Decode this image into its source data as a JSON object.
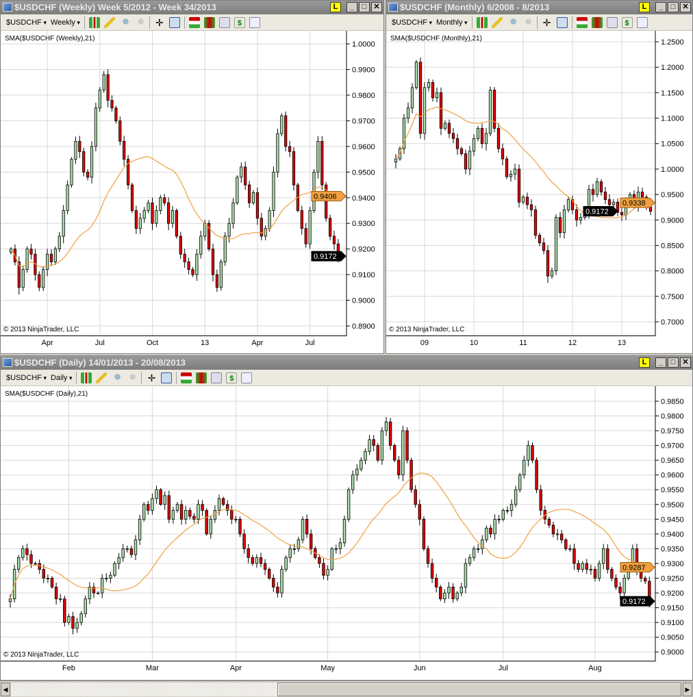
{
  "colors": {
    "up": "#a8dca8",
    "down": "#e00000",
    "sma": "#f0a040",
    "last": "#000000",
    "grid": "#d8d8d8"
  },
  "windows": [
    {
      "id": "weekly",
      "title": "$USDCHF (Weekly)  Week 5/2012 - Week 34/2013",
      "instrument": "$USDCHF",
      "interval": "Weekly",
      "indicator": "SMA($USDCHF (Weekly),21)",
      "copyright": "© 2013 NinjaTrader, LLC",
      "sma_label": "0.9406",
      "last_label": "0.9172",
      "chart_data": {
        "type": "candlestick",
        "sma_period": 21,
        "ylim": [
          0.886,
          1.0051
        ],
        "yticks": [
          "1.0000",
          "0.9900",
          "0.9800",
          "0.9700",
          "0.9600",
          "0.9500",
          "0.9400",
          "0.9300",
          "0.9200",
          "0.9100",
          "0.9000",
          "0.8900"
        ],
        "xticks": [
          {
            "label": "Apr",
            "index": 9
          },
          {
            "label": "Jul",
            "index": 22
          },
          {
            "label": "Oct",
            "index": 35
          },
          {
            "label": "13",
            "index": 48
          },
          {
            "label": "Apr",
            "index": 61
          },
          {
            "label": "Jul",
            "index": 74
          }
        ],
        "closes": [
          0.92,
          0.915,
          0.905,
          0.912,
          0.92,
          0.918,
          0.91,
          0.905,
          0.912,
          0.918,
          0.915,
          0.92,
          0.925,
          0.935,
          0.945,
          0.955,
          0.962,
          0.958,
          0.95,
          0.948,
          0.96,
          0.975,
          0.982,
          0.988,
          0.978,
          0.975,
          0.97,
          0.962,
          0.955,
          0.945,
          0.935,
          0.928,
          0.932,
          0.935,
          0.938,
          0.93,
          0.935,
          0.94,
          0.938,
          0.93,
          0.935,
          0.925,
          0.918,
          0.915,
          0.912,
          0.91,
          0.918,
          0.925,
          0.93,
          0.92,
          0.91,
          0.905,
          0.915,
          0.925,
          0.93,
          0.938,
          0.948,
          0.952,
          0.945,
          0.938,
          0.942,
          0.932,
          0.925,
          0.928,
          0.935,
          0.95,
          0.965,
          0.972,
          0.96,
          0.958,
          0.945,
          0.935,
          0.928,
          0.922,
          0.935,
          0.95,
          0.962,
          0.945,
          0.932,
          0.925,
          0.922,
          0.917
        ]
      }
    },
    {
      "id": "monthly",
      "title": "$USDCHF (Monthly)  6/2008 - 8/2013",
      "instrument": "$USDCHF",
      "interval": "Monthly",
      "indicator": "SMA($USDCHF (Monthly),21)",
      "copyright": "© 2013 NinjaTrader, LLC",
      "sma_label": "0.9338",
      "last_label": "0.9172",
      "chart_data": {
        "type": "candlestick",
        "sma_period": 21,
        "ylim": [
          0.6718,
          1.2715
        ],
        "yticks": [
          "1.2500",
          "1.2000",
          "1.1500",
          "1.1000",
          "1.0500",
          "1.0000",
          "0.9500",
          "0.9000",
          "0.8500",
          "0.8000",
          "0.7500",
          "0.7000"
        ],
        "xticks": [
          {
            "label": "09",
            "index": 7
          },
          {
            "label": "10",
            "index": 19
          },
          {
            "label": "11",
            "index": 31
          },
          {
            "label": "12",
            "index": 43
          },
          {
            "label": "13",
            "index": 55
          }
        ],
        "closes": [
          1.02,
          1.04,
          1.1,
          1.12,
          1.16,
          1.21,
          1.07,
          1.16,
          1.17,
          1.14,
          1.15,
          1.08,
          1.09,
          1.07,
          1.06,
          1.04,
          1.03,
          1.0,
          1.035,
          1.06,
          1.08,
          1.05,
          1.07,
          1.155,
          1.08,
          1.04,
          1.02,
          0.985,
          0.99,
          1.0,
          0.935,
          0.945,
          0.93,
          0.92,
          0.87,
          0.855,
          0.84,
          0.79,
          0.8,
          0.905,
          0.875,
          0.92,
          0.94,
          0.92,
          0.9,
          0.905,
          0.91,
          0.96,
          0.95,
          0.975,
          0.955,
          0.94,
          0.93,
          0.935,
          0.915,
          0.91,
          0.935,
          0.95,
          0.93,
          0.955,
          0.945,
          0.925,
          0.917
        ]
      }
    },
    {
      "id": "daily",
      "title": "$USDCHF (Daily)  14/01/2013 - 20/08/2013",
      "instrument": "$USDCHF",
      "interval": "Daily",
      "indicator": "SMA($USDCHF (Daily),21)",
      "copyright": "© 2013 NinjaTrader, LLC",
      "sma_label": "0.9287",
      "last_label": "0.9172",
      "chart_data": {
        "type": "candlestick",
        "sma_period": 21,
        "ylim": [
          0.8968,
          0.9901
        ],
        "yticks": [
          "0.9850",
          "0.9800",
          "0.9750",
          "0.9700",
          "0.9650",
          "0.9600",
          "0.9550",
          "0.9500",
          "0.9450",
          "0.9400",
          "0.9350",
          "0.9300",
          "0.9250",
          "0.9200",
          "0.9150",
          "0.9100",
          "0.9050",
          "0.9000"
        ],
        "xticks": [
          {
            "label": "Feb",
            "index": 14
          },
          {
            "label": "Mar",
            "index": 34
          },
          {
            "label": "Apr",
            "index": 54
          },
          {
            "label": "May",
            "index": 76
          },
          {
            "label": "Jun",
            "index": 98
          },
          {
            "label": "Jul",
            "index": 118
          },
          {
            "label": "Aug",
            "index": 140
          }
        ],
        "closes": [
          0.918,
          0.928,
          0.932,
          0.935,
          0.933,
          0.93,
          0.93,
          0.928,
          0.925,
          0.925,
          0.922,
          0.918,
          0.918,
          0.91,
          0.912,
          0.908,
          0.91,
          0.913,
          0.918,
          0.922,
          0.92,
          0.92,
          0.925,
          0.925,
          0.926,
          0.93,
          0.932,
          0.935,
          0.935,
          0.933,
          0.938,
          0.945,
          0.95,
          0.948,
          0.952,
          0.955,
          0.95,
          0.953,
          0.945,
          0.948,
          0.95,
          0.945,
          0.948,
          0.946,
          0.945,
          0.95,
          0.948,
          0.94,
          0.945,
          0.948,
          0.952,
          0.95,
          0.948,
          0.945,
          0.945,
          0.94,
          0.935,
          0.932,
          0.93,
          0.932,
          0.93,
          0.928,
          0.925,
          0.922,
          0.92,
          0.928,
          0.932,
          0.935,
          0.935,
          0.938,
          0.945,
          0.94,
          0.935,
          0.932,
          0.93,
          0.926,
          0.928,
          0.935,
          0.935,
          0.937,
          0.945,
          0.955,
          0.96,
          0.962,
          0.965,
          0.968,
          0.972,
          0.97,
          0.965,
          0.975,
          0.978,
          0.97,
          0.965,
          0.96,
          0.975,
          0.965,
          0.955,
          0.95,
          0.945,
          0.935,
          0.93,
          0.925,
          0.922,
          0.918,
          0.92,
          0.922,
          0.918,
          0.92,
          0.922,
          0.93,
          0.932,
          0.935,
          0.935,
          0.938,
          0.942,
          0.94,
          0.945,
          0.945,
          0.948,
          0.948,
          0.95,
          0.955,
          0.96,
          0.965,
          0.97,
          0.965,
          0.955,
          0.948,
          0.945,
          0.943,
          0.94,
          0.94,
          0.938,
          0.935,
          0.935,
          0.93,
          0.928,
          0.93,
          0.928,
          0.928,
          0.925,
          0.93,
          0.935,
          0.928,
          0.925,
          0.922,
          0.92,
          0.925,
          0.93,
          0.935,
          0.928,
          0.925,
          0.924,
          0.917
        ]
      }
    }
  ]
}
